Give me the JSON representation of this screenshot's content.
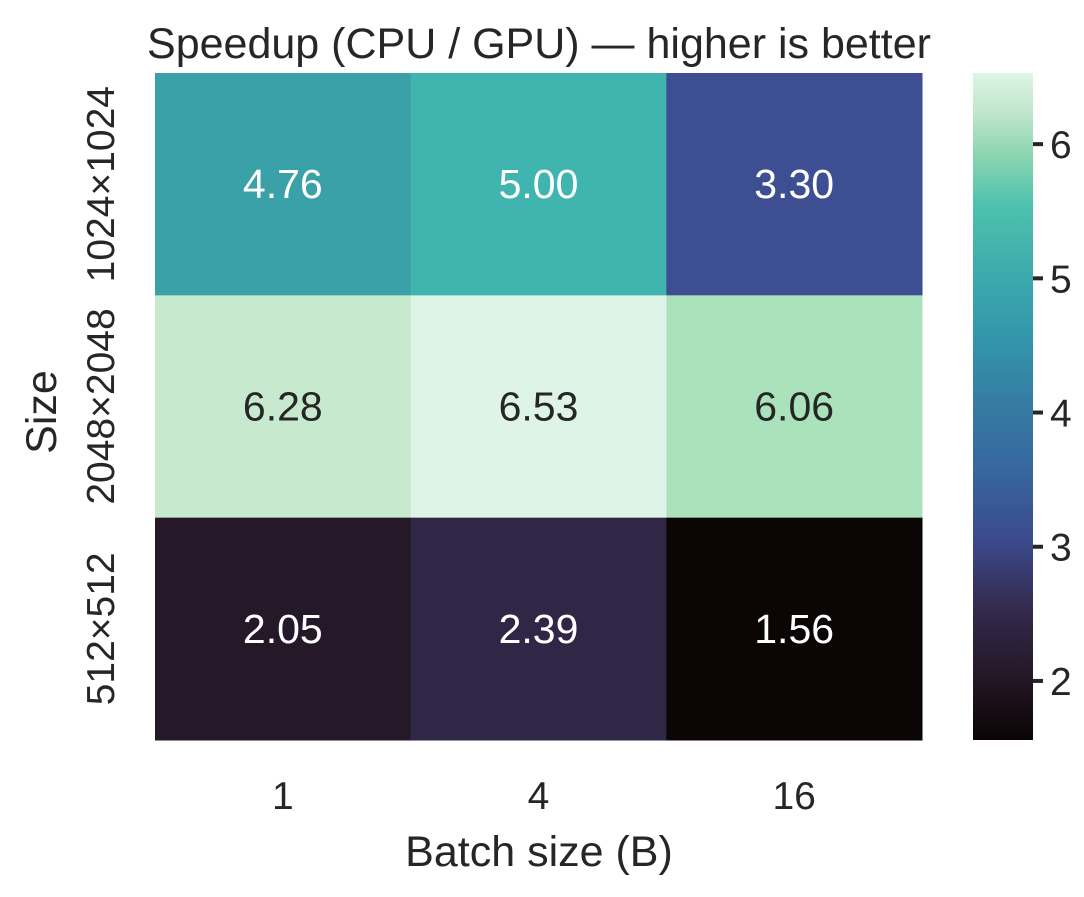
{
  "chart_data": {
    "type": "heatmap",
    "title": "Speedup (CPU / GPU) — higher is better",
    "xlabel": "Batch size (B)",
    "ylabel": "Size",
    "x_categories": [
      "1",
      "4",
      "16"
    ],
    "y_categories": [
      "1024×1024",
      "2048×2048",
      "512×512"
    ],
    "values": [
      [
        4.76,
        5.0,
        3.3
      ],
      [
        6.28,
        6.53,
        6.06
      ],
      [
        2.05,
        2.39,
        1.56
      ]
    ],
    "value_labels": [
      [
        "4.76",
        "5.00",
        "3.30"
      ],
      [
        "6.28",
        "6.53",
        "6.06"
      ],
      [
        "2.05",
        "2.39",
        "1.56"
      ]
    ],
    "colorbar": {
      "colormap": "mako",
      "range": [
        1.56,
        6.53
      ],
      "ticks": [
        2,
        3,
        4,
        5,
        6
      ],
      "tick_labels": [
        "2",
        "3",
        "4",
        "5",
        "6"
      ]
    },
    "colors": {
      "text_dark": "#262626",
      "text_light": "#ffffff",
      "cell_colors": [
        [
          "#3aa1a8",
          "#40b4af",
          "#3d4e92"
        ],
        [
          "#c7eacf",
          "#def4e6",
          "#aae2bc"
        ],
        [
          "#251828",
          "#302645",
          "#0b0505"
        ]
      ]
    }
  }
}
